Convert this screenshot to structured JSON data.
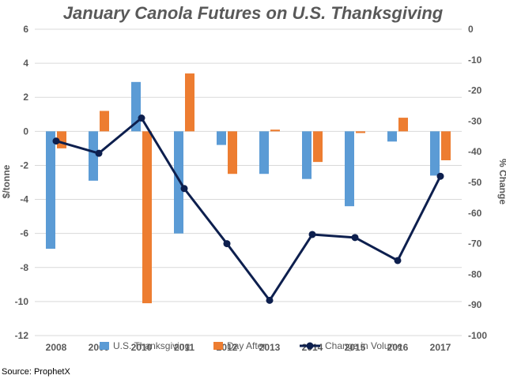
{
  "chart_data": {
    "type": "bar",
    "title": "January Canola Futures on U.S. Thanksgiving",
    "categories": [
      "2008",
      "2009",
      "2010",
      "2011",
      "2012",
      "2013",
      "2014",
      "2015",
      "2016",
      "2017"
    ],
    "series": [
      {
        "name": "U.S. Thanksgiving",
        "type": "bar",
        "axis": "left",
        "color": "#5B9BD5",
        "values": [
          -6.9,
          -2.9,
          2.9,
          -6.0,
          -0.8,
          -2.5,
          -2.8,
          -4.4,
          -0.6,
          -2.6
        ]
      },
      {
        "name": "Day After",
        "type": "bar",
        "axis": "left",
        "color": "#ED7D31",
        "values": [
          -1.0,
          1.2,
          -10.1,
          3.4,
          -2.5,
          0.1,
          -1.8,
          -0.1,
          0.8,
          -1.7
        ]
      },
      {
        "name": "Change in Volume",
        "type": "line",
        "axis": "right",
        "color": "#0D1F4E",
        "values": [
          -36.5,
          -40.5,
          -29,
          -52,
          -70,
          -88.5,
          -67,
          -68,
          -75.5,
          -48
        ]
      }
    ],
    "ylabel": "$/tonne",
    "ylim": [
      -12,
      6
    ],
    "yticks": [
      6,
      4,
      2,
      0,
      -2,
      -4,
      -6,
      -8,
      -10,
      -12
    ],
    "y2label": "% Change",
    "y2lim": [
      -100,
      0
    ],
    "y2ticks": [
      0,
      -10,
      -20,
      -30,
      -40,
      -50,
      -60,
      -70,
      -80,
      -90,
      -100
    ],
    "grid": "horizontal",
    "legend": "bottom"
  },
  "source": "Source: ProphetX"
}
